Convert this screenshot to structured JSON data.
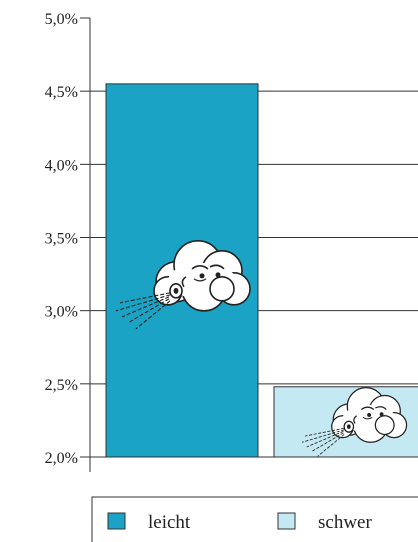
{
  "chart_data": {
    "type": "bar",
    "categories": [
      "leicht",
      "schwer"
    ],
    "values": [
      4.55,
      2.48
    ],
    "colors": [
      "#1aa3c4",
      "#c5e9f2"
    ],
    "y_ticks": [
      "5,0%",
      "4,5%",
      "4,0%",
      "3,5%",
      "3,0%",
      "2,5%",
      "2,0%"
    ],
    "y_tick_values": [
      5.0,
      4.5,
      4.0,
      3.5,
      3.0,
      2.5,
      2.0
    ],
    "ylim": [
      2.0,
      5.0
    ],
    "grid": true,
    "legend_position": "bottom",
    "decorations": [
      "blowing-cloud-icon",
      "blowing-cloud-icon"
    ]
  }
}
